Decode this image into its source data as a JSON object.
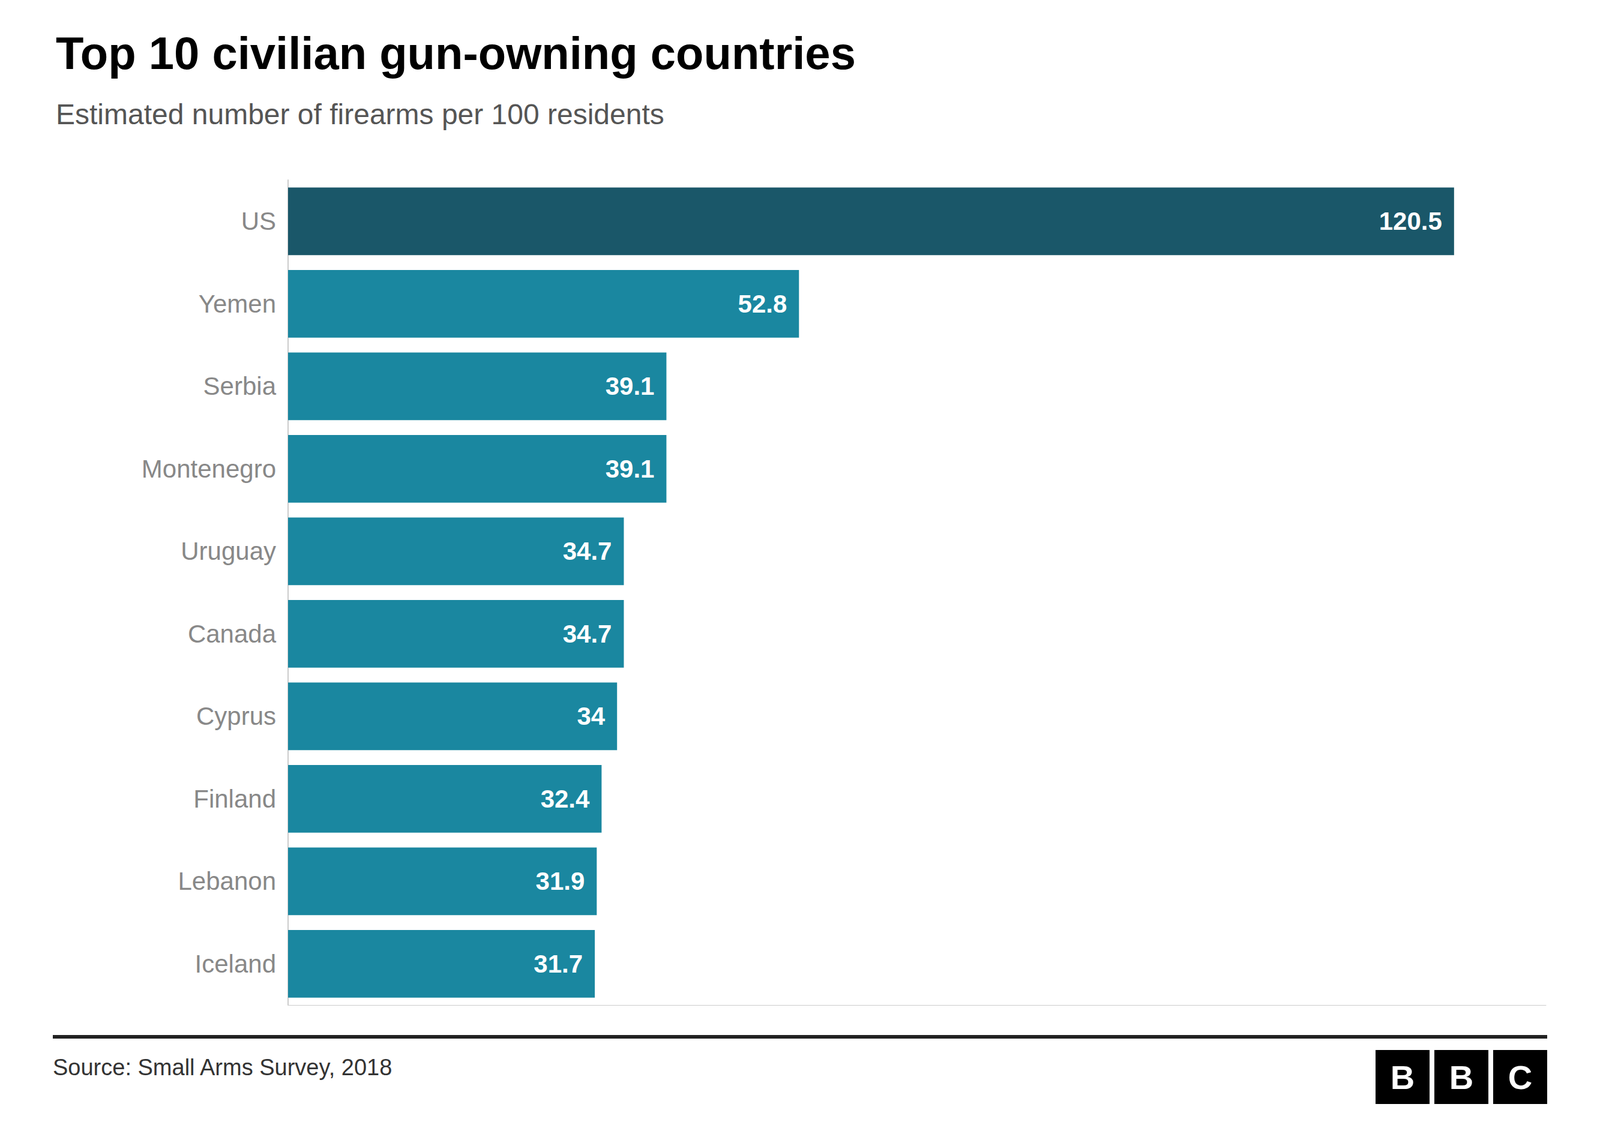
{
  "chart_data": {
    "type": "bar",
    "orientation": "horizontal",
    "title": "Top 10 civilian gun-owning countries",
    "subtitle": "Estimated number of firearms per 100 residents",
    "source": "Source: Small Arms Survey, 2018",
    "logo": [
      "B",
      "B",
      "C"
    ],
    "categories": [
      "US",
      "Yemen",
      "Serbia",
      "Montenegro",
      "Uruguay",
      "Canada",
      "Cyprus",
      "Finland",
      "Lebanon",
      "Iceland"
    ],
    "values": [
      120.5,
      52.8,
      39.1,
      39.1,
      34.7,
      34.7,
      34.0,
      32.4,
      31.9,
      31.7
    ],
    "colors": [
      "#1a5769",
      "#1a87a0",
      "#1a87a0",
      "#1a87a0",
      "#1a87a0",
      "#1a87a0",
      "#1a87a0",
      "#1a87a0",
      "#1a87a0",
      "#1a87a0"
    ],
    "xlim": [
      0,
      130
    ],
    "data_labels": true,
    "tick_labels": "y",
    "grid": false
  }
}
